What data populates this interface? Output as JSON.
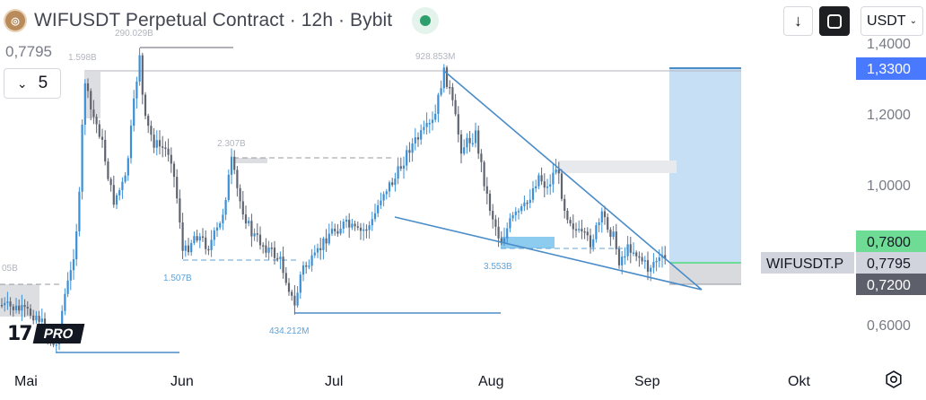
{
  "header": {
    "coin_icon": "wif-coin-icon",
    "title": "WIFUSDT Perpetual Contract · 12h · Bybit",
    "status_color": "#2f9e6d"
  },
  "price_readout": "0,7795",
  "interval": {
    "chevron": "⌄",
    "value": "5"
  },
  "toolbar": {
    "download_icon": "↓",
    "fullscreen_icon": "fullscreen-icon",
    "currency": "USDT",
    "currency_chevron": "⌄"
  },
  "branding": {
    "logo_text": "17",
    "badge": "PRO"
  },
  "settings_icon": "gear-icon",
  "chart_data": {
    "type": "candlestick",
    "symbol": "WIFUSDT.P",
    "currency": "USDT",
    "y_axis": {
      "ticks": [
        "1,4000",
        "1,2000",
        "1,0000",
        "0,6000"
      ],
      "tick_values": [
        1.4,
        1.2,
        1.0,
        0.6
      ],
      "scale": "log"
    },
    "x_axis": {
      "labels": [
        "Mai",
        "Jun",
        "Jul",
        "Aug",
        "Sep",
        "Okt"
      ]
    },
    "price_tags": [
      {
        "value": "1,3300",
        "color": "#2962ff"
      },
      {
        "value": "0,7800",
        "color": "#6fdc96"
      },
      {
        "value": "0,7795",
        "color": "#d1d4dc"
      },
      {
        "value": "0,7200",
        "color": "#5d606b"
      }
    ],
    "price_tag_label": "WIFUSDT.P",
    "volume_annotations": [
      {
        "text": "290.029B",
        "color": "#b2b5be"
      },
      {
        "text": "1.598B",
        "color": "#b2b5be"
      },
      {
        "text": "05B",
        "color": "#b2b5be"
      },
      {
        "text": "2.307B",
        "color": "#b2b5be"
      },
      {
        "text": "928.853M",
        "color": "#b2b5be"
      },
      {
        "text": "1.507B",
        "color": "#5fa3d8"
      },
      {
        "text": "434.212M",
        "color": "#5fa3d8"
      },
      {
        "text": "3.553B",
        "color": "#5fa3d8"
      }
    ],
    "colors": {
      "candle": "#5f6470",
      "candle_blue": "#3a8fd6",
      "trendline": "#4a8cc8",
      "target_zone": "#c7dff5",
      "stop_zone": "#d9dadd"
    },
    "pattern": "falling wedge",
    "position": {
      "entry": 0.78,
      "target": 1.33,
      "stop": 0.72
    }
  }
}
